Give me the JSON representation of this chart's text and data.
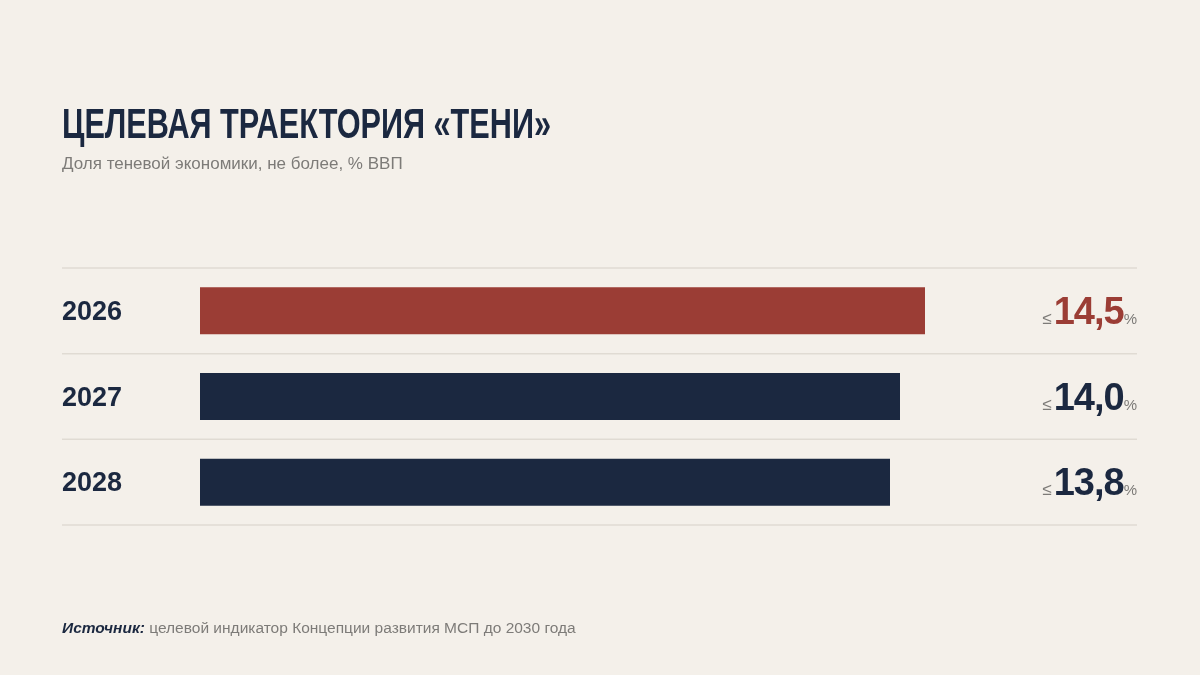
{
  "chart_data": {
    "type": "bar",
    "orientation": "horizontal",
    "title": "ЦЕЛЕВАЯ ТРАЕКТОРИЯ «ТЕНИ»",
    "subtitle": "Доля теневой экономики, не более, % ВВП",
    "annotations": [
      "Источник: целевой индикатор Концепции развития МСП до 2030 года"
    ],
    "categories": [
      "2026",
      "2027",
      "2028"
    ],
    "values": [
      14.5,
      14.0,
      13.8
    ],
    "colors": [
      "#9b3d35",
      "#1b2840",
      "#1b2840"
    ],
    "value_labels": [
      "≤14,5%",
      "≤14,0%",
      "≤13,8%"
    ],
    "grid": "y",
    "tick_labels": "y"
  }
}
